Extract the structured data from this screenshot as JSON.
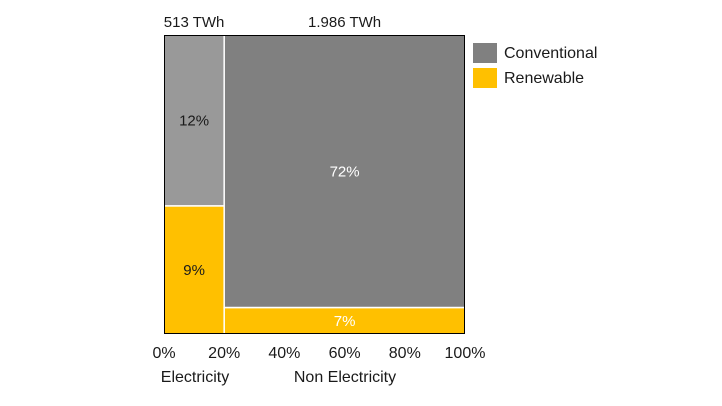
{
  "chart_data": {
    "type": "bar",
    "subtype": "mekko",
    "title": "",
    "xlabel": "",
    "ylabel": "",
    "xlim": [
      0,
      100
    ],
    "x_ticks": [
      "0%",
      "20%",
      "40%",
      "60%",
      "80%",
      "100%"
    ],
    "grid": false,
    "legend_position": "right",
    "categories": [
      {
        "name": "Electricity",
        "total_label": "513 TWh",
        "width_pct": 20
      },
      {
        "name": "Non Electricity",
        "total_label": "1.986 TWh",
        "width_pct": 80
      }
    ],
    "series": [
      {
        "name": "Conventional",
        "color": "#808080",
        "values": [
          12,
          72
        ],
        "labels": [
          "12%",
          "72%"
        ],
        "label_colors": [
          "#1a1a1a",
          "#ffffff"
        ]
      },
      {
        "name": "Renewable",
        "color": "#ffc000",
        "values": [
          9,
          7
        ],
        "labels": [
          "9%",
          "7%"
        ],
        "label_colors": [
          "#1a1a1a",
          "#ffffff"
        ]
      }
    ],
    "segment_colors": {
      "Electricity": {
        "Conventional": "#999999",
        "Renewable": "#ffc000"
      },
      "Non Electricity": {
        "Conventional": "#808080",
        "Renewable": "#ffc000"
      }
    }
  }
}
